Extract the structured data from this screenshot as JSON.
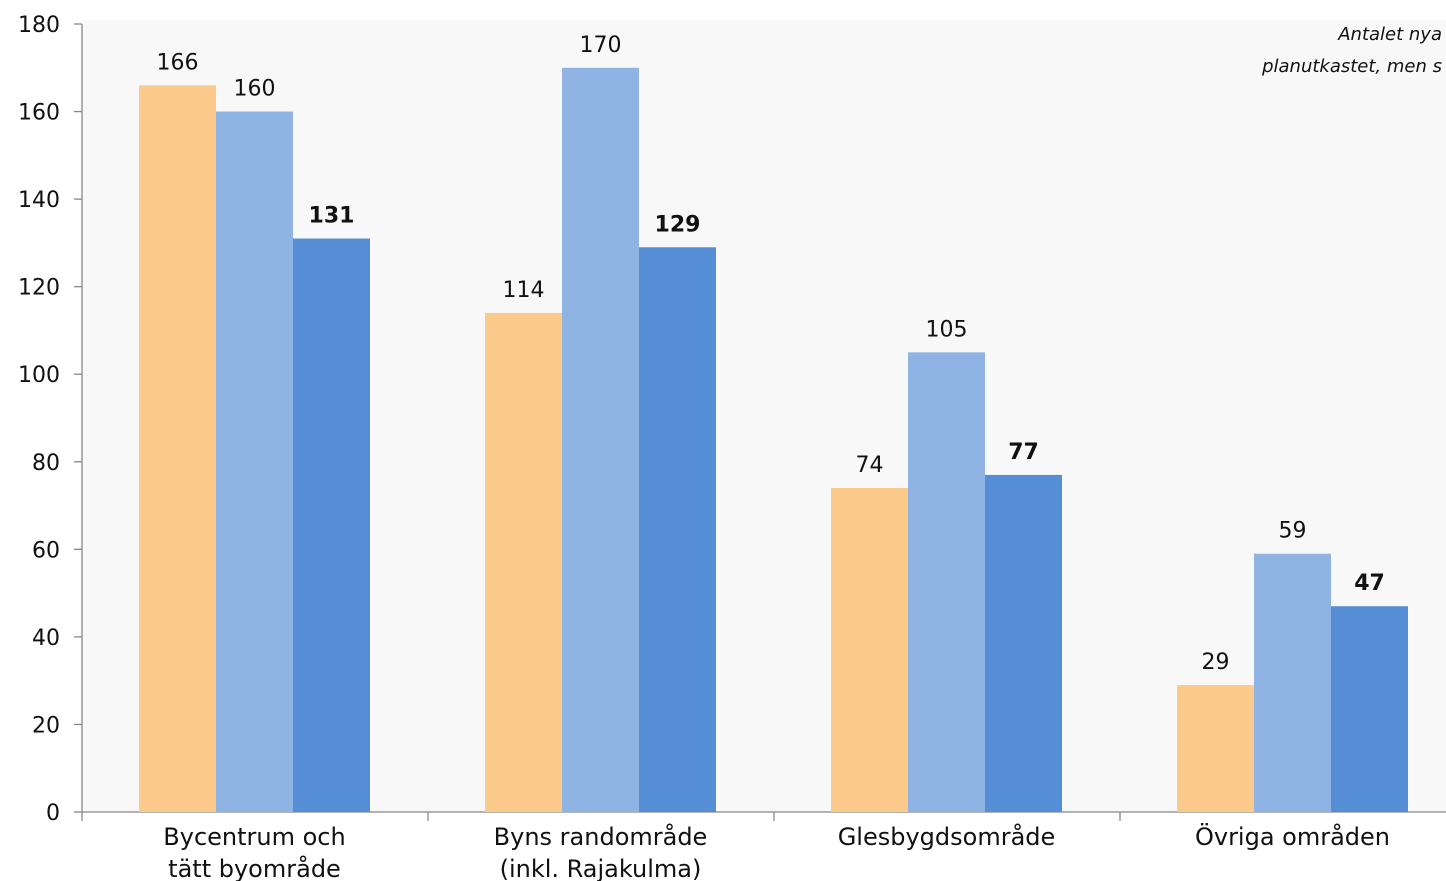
{
  "chart_data": {
    "type": "bar",
    "categories": [
      [
        "Bycentrum och",
        "tätt byområde"
      ],
      [
        "Byns randområde",
        "(inkl. Rajakulma)"
      ],
      [
        "Glesbygdsområde"
      ],
      [
        "Övriga områden"
      ]
    ],
    "series": [
      {
        "values": [
          166,
          114,
          74,
          29
        ],
        "color": "#fccb8b",
        "label_bold": false
      },
      {
        "values": [
          160,
          170,
          105,
          59
        ],
        "color": "#8fb4e3",
        "label_bold": false
      },
      {
        "values": [
          131,
          129,
          77,
          47
        ],
        "color": "#558ed5",
        "label_bold": true
      }
    ],
    "ylim": [
      0,
      180
    ],
    "yticks": [
      0,
      20,
      40,
      60,
      80,
      100,
      120,
      140,
      160,
      180
    ],
    "annotation": [
      "Antalet nya",
      "planutkastet, men s"
    ],
    "plot_background": "#f8f8f8",
    "legend": "none",
    "grid": false
  }
}
